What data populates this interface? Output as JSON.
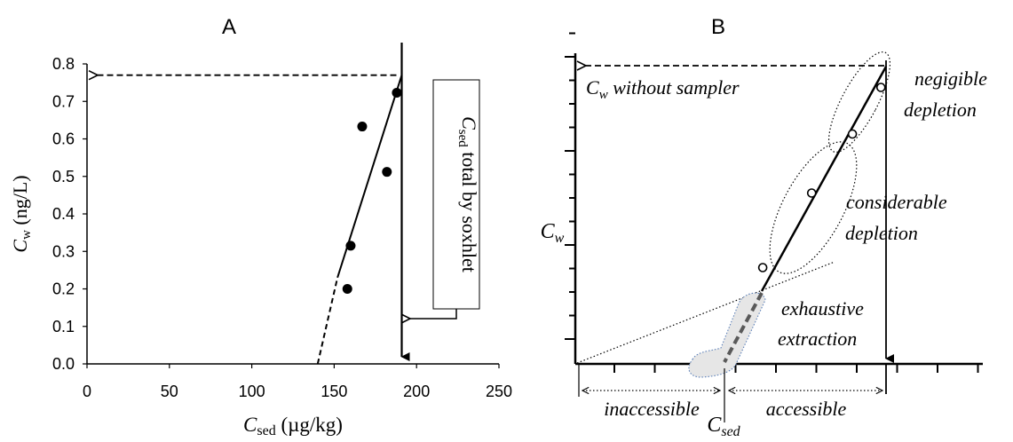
{
  "chart_data": [
    {
      "type": "scatter",
      "panel_label": "A",
      "xlabel_main": "C",
      "xlabel_sub": "sed",
      "xlabel_unit": " (µg/kg)",
      "ylabel_main": "C",
      "ylabel_sub": "w",
      "ylabel_unit": " (ng/L)",
      "xlim": [
        0,
        250
      ],
      "ylim": [
        0,
        0.8
      ],
      "x_ticks": [
        0,
        50,
        100,
        150,
        200,
        250
      ],
      "y_ticks": [
        0.0,
        0.1,
        0.2,
        0.3,
        0.4,
        0.5,
        0.6,
        0.7,
        0.8
      ],
      "points": [
        {
          "x": 158,
          "y": 0.2
        },
        {
          "x": 160,
          "y": 0.315
        },
        {
          "x": 167,
          "y": 0.633
        },
        {
          "x": 182,
          "y": 0.512
        },
        {
          "x": 188,
          "y": 0.723
        }
      ],
      "fit_line_solid": [
        [
          152,
          0.23
        ],
        [
          191,
          0.77
        ]
      ],
      "fit_line_dashed": [
        [
          140,
          0.0
        ],
        [
          152,
          0.23
        ]
      ],
      "vertical_marker_x": 191,
      "annotation_main": "C",
      "annotation_sub": "sed",
      "annotation_rest": " total by soxhlet",
      "grid": false
    },
    {
      "type": "line",
      "panel_label": "B",
      "xlabel_main": "C",
      "xlabel_sub": "sed",
      "ylabel_main": "C",
      "ylabel_sub": "w",
      "points": [
        [
          0.46,
          0.31
        ],
        [
          0.58,
          0.55
        ],
        [
          0.68,
          0.74
        ],
        [
          0.75,
          0.89
        ]
      ],
      "annotations": {
        "cw_arrow_main": "C",
        "cw_arrow_sub": "w",
        "cw_arrow_rest": " without sampler",
        "negligible_line1": "negigible",
        "negligible_line2": "depletion",
        "considerable_line1": "considerable",
        "considerable_line2": "depletion",
        "exhaustive_line1": "exhaustive",
        "exhaustive_line2": "extraction",
        "inaccessible": "inaccessible",
        "accessible": "accessible"
      }
    }
  ]
}
